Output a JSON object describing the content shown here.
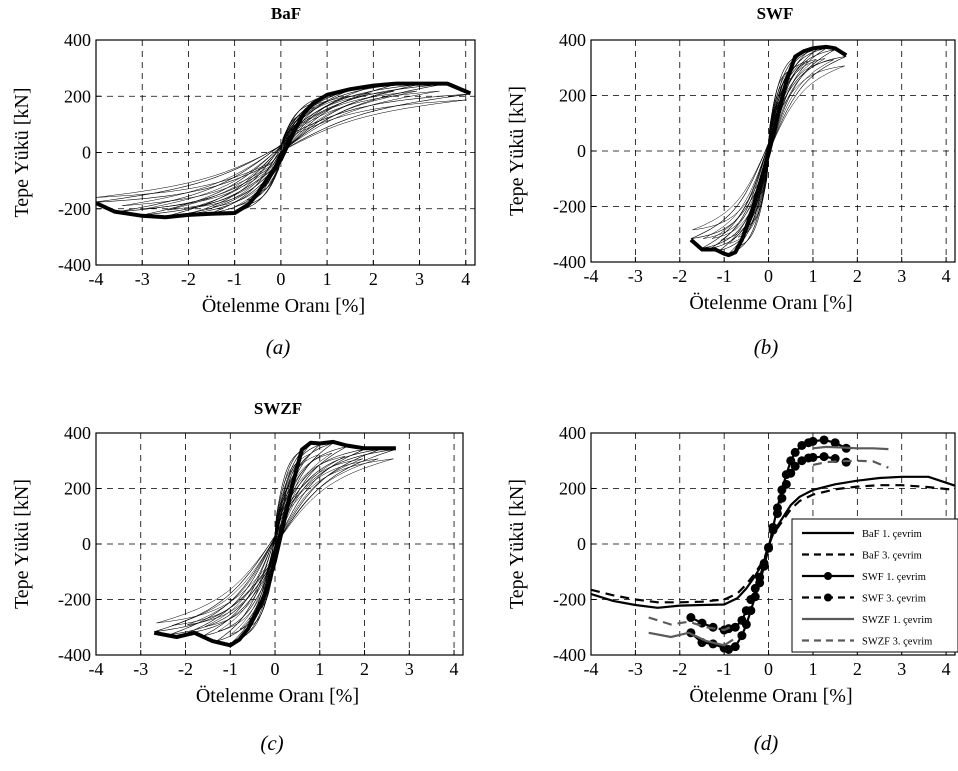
{
  "chart_data": [
    {
      "type": "line",
      "panel": "a",
      "title": "BaF",
      "caption": "(a)",
      "xlabel": "Ötelenme Oranı [%]",
      "ylabel": "Tepe Yükü [kN]",
      "xlim": [
        -4,
        4.2
      ],
      "ylim": [
        -400,
        400
      ],
      "xticks": [
        "-4",
        "-3",
        "-2",
        "-1",
        "0",
        "1",
        "2",
        "3",
        "4"
      ],
      "yticks": [
        "400",
        "200",
        "0",
        "-200",
        "-400"
      ],
      "grid": true,
      "loops": {
        "peaks": [
          0.25,
          0.5,
          0.75,
          1.0,
          1.5,
          2.0,
          2.5,
          3.0,
          3.5,
          4.1
        ],
        "slopeBase": 260,
        "slopeMin": 90,
        "pinch": 0.35,
        "thickness": 0.3
      },
      "series": [
        {
          "name": "envelope",
          "style": "thick",
          "x": [
            -4.0,
            -3.6,
            -3.0,
            -2.5,
            -2.0,
            -1.5,
            -1.0,
            -0.7,
            -0.5,
            -0.3,
            0,
            0.3,
            0.5,
            0.7,
            1.0,
            1.5,
            2.0,
            2.5,
            3.0,
            3.6,
            4.1
          ],
          "y": [
            -180,
            -210,
            -225,
            -230,
            -222,
            -218,
            -215,
            -185,
            -145,
            -95,
            -25,
            80,
            140,
            175,
            205,
            225,
            238,
            245,
            245,
            245,
            210
          ]
        }
      ]
    },
    {
      "type": "line",
      "panel": "b",
      "title": "SWF",
      "caption": "(b)",
      "xlabel": "Ötelenme Oranı [%]",
      "ylabel": "Tepe Yükü [kN]",
      "xlim": [
        -2,
        4.2
      ],
      "ylim": [
        -400,
        400
      ],
      "xticks": [
        "-4",
        "-3",
        "-2",
        "-1",
        "0",
        "1",
        "2",
        "3",
        "4"
      ],
      "yticks": [
        "400",
        "200",
        "0",
        "-200",
        "-400"
      ],
      "grid": true,
      "loops": {
        "peaks": [
          0.15,
          0.3,
          0.5,
          0.7,
          0.9,
          1.1,
          1.3,
          1.5,
          1.75
        ],
        "slopeBase": 480,
        "slopeMin": 200,
        "pinch": 0.25,
        "thickness": 0.28
      },
      "series": [
        {
          "name": "envelope",
          "style": "thick",
          "x": [
            -1.75,
            -1.5,
            -1.2,
            -1.0,
            -0.9,
            -0.75,
            -0.6,
            -0.4,
            -0.2,
            0,
            0.2,
            0.4,
            0.6,
            0.8,
            1.0,
            1.3,
            1.5,
            1.75
          ],
          "y": [
            -320,
            -355,
            -355,
            -370,
            -375,
            -365,
            -320,
            -230,
            -120,
            -10,
            120,
            250,
            340,
            360,
            370,
            375,
            370,
            345
          ]
        }
      ]
    },
    {
      "type": "line",
      "panel": "c",
      "title": "SWZF",
      "caption": "(c)",
      "xlabel": "Ötelenme Oranı [%]",
      "ylabel": "Tepe Yükü [kN]",
      "xlim": [
        -4,
        4.2
      ],
      "ylim": [
        -400,
        400
      ],
      "xticks": [
        "-4",
        "-3",
        "-2",
        "-1",
        "0",
        "1",
        "2",
        "3",
        "4"
      ],
      "yticks": [
        "400",
        "200",
        "0",
        "-200",
        "-400"
      ],
      "grid": true,
      "loops": {
        "peaks": [
          0.2,
          0.4,
          0.6,
          0.8,
          1.0,
          1.3,
          1.6,
          2.0,
          2.35,
          2.7
        ],
        "slopeBase": 520,
        "slopeMin": 130,
        "pinch": 0.3,
        "thickness": 0.3
      },
      "series": [
        {
          "name": "envelope",
          "style": "thick",
          "x": [
            -2.7,
            -2.2,
            -1.8,
            -1.4,
            -1.0,
            -0.8,
            -0.6,
            -0.4,
            -0.2,
            0,
            0.2,
            0.4,
            0.6,
            0.8,
            1.0,
            1.3,
            1.6,
            2.0,
            2.35,
            2.7
          ],
          "y": [
            -320,
            -335,
            -320,
            -350,
            -365,
            -345,
            -305,
            -245,
            -170,
            -60,
            80,
            220,
            340,
            365,
            362,
            368,
            355,
            345,
            345,
            345
          ]
        }
      ]
    },
    {
      "type": "line",
      "panel": "d",
      "caption": "(d)",
      "xlabel": "Ötelenme Oranı [%]",
      "ylabel": "Tepe Yükü [kN]",
      "xlim": [
        -4,
        4.2
      ],
      "ylim": [
        -400,
        400
      ],
      "xticks": [
        "-4",
        "-3",
        "-2",
        "-1",
        "0",
        "1",
        "2",
        "3",
        "4"
      ],
      "yticks": [
        "400",
        "200",
        "0",
        "-200",
        "-400"
      ],
      "grid": true,
      "legend": "lower-right",
      "series": [
        {
          "name": "BaF 1. çevrim",
          "color": "#000000",
          "dash": false,
          "marker": false,
          "x": [
            -4.0,
            -3.5,
            -3.0,
            -2.5,
            -2.0,
            -1.5,
            -1.0,
            -0.7,
            -0.5,
            -0.3,
            -0.1,
            0,
            0.1,
            0.3,
            0.5,
            0.7,
            1.0,
            1.5,
            2.0,
            2.5,
            3.0,
            3.6,
            4.2
          ],
          "y": [
            -180,
            -205,
            -220,
            -230,
            -222,
            -220,
            -218,
            -195,
            -160,
            -115,
            -60,
            -10,
            40,
            90,
            140,
            170,
            195,
            215,
            228,
            238,
            242,
            242,
            210
          ]
        },
        {
          "name": "BaF 3. çevrim",
          "color": "#000000",
          "dash": true,
          "marker": false,
          "x": [
            -4.0,
            -3.5,
            -3.0,
            -2.5,
            -2.0,
            -1.5,
            -1.0,
            -0.7,
            -0.5,
            -0.3,
            -0.1,
            0,
            0.1,
            0.3,
            0.5,
            0.7,
            1.0,
            1.5,
            2.0,
            2.5,
            3.0,
            3.6,
            4.2
          ],
          "y": [
            -165,
            -185,
            -200,
            -210,
            -210,
            -208,
            -200,
            -178,
            -145,
            -105,
            -55,
            -5,
            35,
            80,
            125,
            155,
            178,
            197,
            207,
            212,
            212,
            205,
            195
          ]
        },
        {
          "name": "SWF 1. çevrim",
          "color": "#000000",
          "dash": false,
          "marker": true,
          "x": [
            -1.75,
            -1.5,
            -1.25,
            -1.0,
            -0.9,
            -0.75,
            -0.6,
            -0.5,
            -0.4,
            -0.3,
            -0.2,
            -0.1,
            0,
            0.1,
            0.2,
            0.3,
            0.4,
            0.5,
            0.6,
            0.75,
            0.9,
            1.0,
            1.25,
            1.5,
            1.75
          ],
          "y": [
            -320,
            -355,
            -360,
            -375,
            -380,
            -370,
            -330,
            -290,
            -240,
            -190,
            -140,
            -80,
            -15,
            60,
            130,
            195,
            250,
            300,
            330,
            355,
            365,
            370,
            375,
            365,
            345
          ]
        },
        {
          "name": "SWF 3. çevrim",
          "color": "#000000",
          "dash": true,
          "marker": true,
          "x": [
            -1.75,
            -1.5,
            -1.25,
            -1.0,
            -0.9,
            -0.75,
            -0.6,
            -0.5,
            -0.4,
            -0.3,
            -0.2,
            -0.1,
            0,
            0.1,
            0.2,
            0.3,
            0.4,
            0.5,
            0.6,
            0.75,
            0.9,
            1.0,
            1.25,
            1.5,
            1.75
          ],
          "y": [
            -265,
            -285,
            -300,
            -310,
            -305,
            -300,
            -275,
            -240,
            -200,
            -160,
            -120,
            -70,
            -12,
            50,
            110,
            165,
            215,
            255,
            280,
            300,
            310,
            312,
            315,
            308,
            295
          ]
        },
        {
          "name": "SWZF 1. çevrim",
          "color": "#5a5a5a",
          "dash": false,
          "marker": false,
          "x": [
            -2.7,
            -2.2,
            -1.8,
            -1.4,
            -1.0,
            -0.8
          ],
          "y": [
            -320,
            -335,
            -320,
            -350,
            -365,
            -345
          ]
        },
        {
          "name": "SWZF 3. çevrim",
          "color": "#5a5a5a",
          "dash": true,
          "marker": false,
          "x": [
            -2.7,
            -2.2,
            -1.8,
            -1.4,
            -1.0,
            -0.8
          ],
          "y": [
            -265,
            -290,
            -280,
            -300,
            -310,
            -295
          ]
        },
        {
          "name": "SWZF 1. çevrim upper",
          "color": "#5a5a5a",
          "dash": false,
          "marker": false,
          "x": [
            1.0,
            1.3,
            1.6,
            2.0,
            2.35,
            2.7
          ],
          "y": [
            345,
            350,
            348,
            345,
            345,
            342
          ]
        },
        {
          "name": "SWZF 3. çevrim upper",
          "color": "#5a5a5a",
          "dash": true,
          "marker": false,
          "x": [
            1.0,
            1.3,
            1.6,
            2.0,
            2.35,
            2.7
          ],
          "y": [
            285,
            295,
            298,
            300,
            298,
            275
          ]
        }
      ]
    }
  ]
}
